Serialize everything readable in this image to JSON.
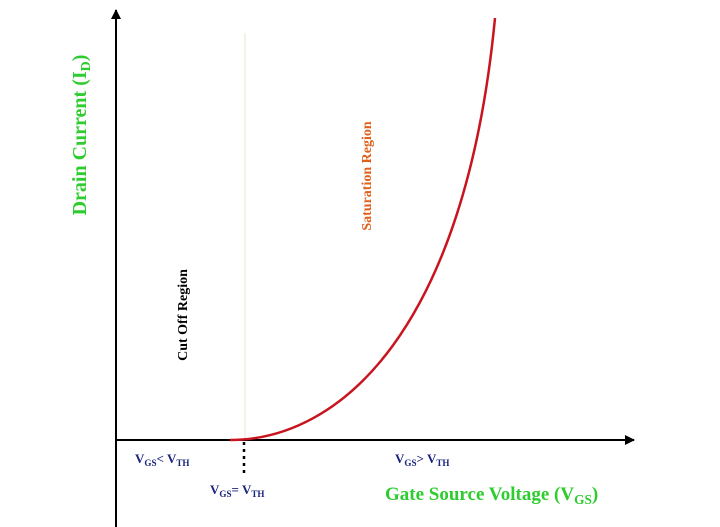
{
  "y_axis_label": [
    "Drain Current (I",
    "D",
    ")"
  ],
  "x_axis_label": [
    "Gate Source Voltage (V",
    "GS",
    ")"
  ],
  "regions": {
    "cut_off": "Cut Off Region",
    "saturation": "Saturation Region"
  },
  "conditions": {
    "below": [
      "V",
      "GS",
      "< V",
      "TH"
    ],
    "equal": [
      "V",
      "GS",
      "= V",
      "TH"
    ],
    "above": [
      "V",
      "GS",
      "> V",
      "TH"
    ]
  }
}
